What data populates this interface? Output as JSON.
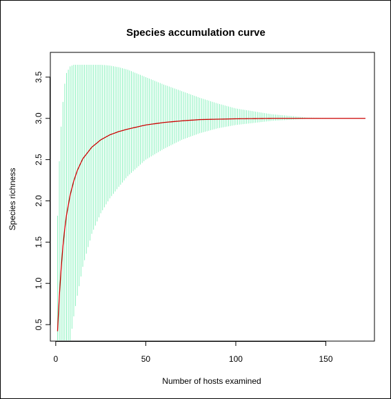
{
  "chart_data": {
    "type": "line",
    "title": "Species accumulation curve",
    "xlabel": "Number of hosts examined",
    "ylabel": "Species richness",
    "xlim": [
      -3,
      177
    ],
    "ylim": [
      0.3,
      3.8
    ],
    "x_ticks": [
      "0",
      "50",
      "100",
      "150"
    ],
    "x_tick_values": [
      0,
      50,
      100,
      150
    ],
    "y_ticks": [
      "0.5",
      "1.0",
      "1.5",
      "2.0",
      "2.5",
      "3.0",
      "3.5"
    ],
    "y_tick_values": [
      0.5,
      1.0,
      1.5,
      2.0,
      2.5,
      3.0,
      3.5
    ],
    "grid": false,
    "series": [
      {
        "style": "line",
        "color": "#cc0000",
        "x": [
          1,
          2,
          3,
          4,
          5,
          6,
          8,
          10,
          12,
          15,
          20,
          25,
          30,
          35,
          40,
          50,
          60,
          70,
          80,
          90,
          100,
          120,
          140,
          160,
          172
        ],
        "values": [
          0.42,
          0.85,
          1.18,
          1.45,
          1.66,
          1.83,
          2.07,
          2.24,
          2.37,
          2.51,
          2.65,
          2.74,
          2.8,
          2.84,
          2.87,
          2.92,
          2.95,
          2.97,
          2.985,
          2.99,
          2.995,
          3.0,
          3.0,
          3.0,
          3.0
        ]
      },
      {
        "style": "error-bars",
        "color": "#80f0b8",
        "x": [
          1,
          2,
          3,
          4,
          5,
          6,
          8,
          10,
          12,
          15,
          20,
          25,
          30,
          35,
          40,
          50,
          60,
          70,
          80,
          90,
          100,
          120,
          140,
          160,
          172
        ],
        "upper": [
          1.82,
          2.48,
          2.9,
          3.2,
          3.42,
          3.55,
          3.63,
          3.65,
          3.65,
          3.65,
          3.65,
          3.65,
          3.64,
          3.62,
          3.59,
          3.5,
          3.41,
          3.33,
          3.25,
          3.18,
          3.12,
          3.05,
          3.01,
          3.0,
          3.0
        ],
        "lower": [
          0.3,
          0.3,
          0.3,
          0.3,
          0.3,
          0.3,
          0.3,
          0.6,
          0.85,
          1.2,
          1.6,
          1.85,
          2.03,
          2.17,
          2.3,
          2.5,
          2.63,
          2.74,
          2.82,
          2.88,
          2.92,
          2.97,
          2.995,
          3.0,
          3.0
        ]
      }
    ]
  }
}
